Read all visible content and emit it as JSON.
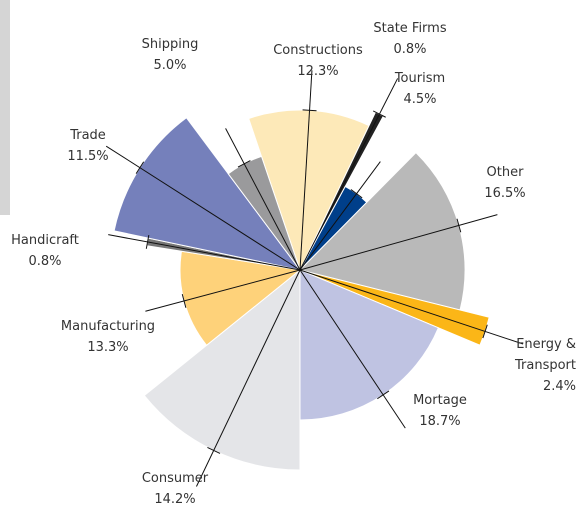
{
  "chart_data": {
    "type": "pie",
    "categories": [
      "Constructions",
      "State Firms",
      "Tourism",
      "Other",
      "Energy & Transport",
      "Mortage",
      "Consumer",
      "Manufacturing",
      "Handicraft",
      "Trade",
      "Shipping"
    ],
    "values": [
      12.3,
      0.8,
      4.5,
      16.5,
      2.4,
      18.7,
      14.2,
      13.3,
      0.8,
      11.5,
      5.0
    ],
    "value_labels": [
      "12.3%",
      "0.8%",
      "4.5%",
      "16.5%",
      "2.4%",
      "18.7%",
      "14.2%",
      "13.3%",
      "0.8%",
      "11.5%",
      "5.0%"
    ],
    "radii": [
      160,
      175,
      95,
      165,
      195,
      150,
      200,
      120,
      155,
      190,
      120
    ],
    "colors": [
      "#fde9b8",
      "#222222",
      "#003f8a",
      "#b9b9b9",
      "#fbb617",
      "#bfc3e2",
      "#e4e5e8",
      "#fed27a",
      "#777777",
      "#7580bb",
      "#9a9a9c"
    ]
  }
}
